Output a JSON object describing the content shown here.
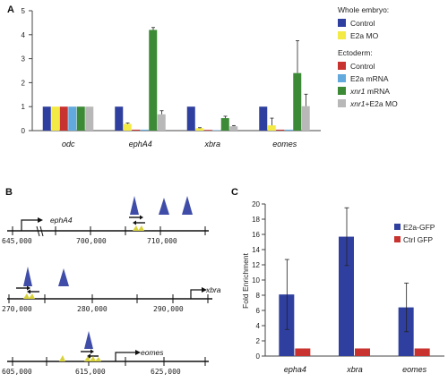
{
  "panels": {
    "a": "A",
    "b": "B",
    "c": "C"
  },
  "chart_data": [
    {
      "type": "bar",
      "categories": [
        "odc",
        "ephA4",
        "xbra",
        "eomes"
      ],
      "ylim": [
        0,
        5
      ],
      "yticks": [
        0,
        1,
        2,
        3,
        4,
        5
      ],
      "legend": {
        "groups": [
          {
            "title": "Whole embryo:",
            "items": [
              {
                "label": "Control",
                "color": "#2f3f9f"
              },
              {
                "label": "E2a MO",
                "color": "#f3ea45"
              }
            ]
          },
          {
            "title": "Ectoderm:",
            "items": [
              {
                "label": "Control",
                "color": "#c8322f"
              },
              {
                "label": "E2a mRNA",
                "color": "#62a9dd"
              },
              {
                "label": "xnr1 mRNA",
                "color": "#3c8a36",
                "italic_prefix": "xnr1"
              },
              {
                "label": "xnr1+E2a MO",
                "color": "#b8b8b8",
                "italic_prefix": "xnr1"
              }
            ]
          }
        ]
      },
      "series": [
        {
          "name": "Whole embryo: Control",
          "color": "#2f3f9f",
          "values": [
            1.0,
            1.0,
            1.0,
            1.0
          ],
          "errors": [
            0,
            0,
            0,
            0
          ]
        },
        {
          "name": "Whole embryo: E2a MO",
          "color": "#f3ea45",
          "values": [
            1.0,
            0.28,
            0.1,
            0.22
          ],
          "errors": [
            0,
            0.04,
            0.02,
            0.3
          ]
        },
        {
          "name": "Ectoderm: Control",
          "color": "#c8322f",
          "values": [
            1.0,
            0.04,
            0.03,
            0.04
          ],
          "errors": [
            0,
            0,
            0,
            0
          ]
        },
        {
          "name": "Ectoderm: E2a mRNA",
          "color": "#62a9dd",
          "values": [
            1.0,
            0.04,
            0.02,
            0.04
          ],
          "errors": [
            0,
            0,
            0,
            0
          ]
        },
        {
          "name": "Ectoderm: xnr1 mRNA",
          "color": "#3c8a36",
          "values": [
            1.0,
            4.2,
            0.52,
            2.4
          ],
          "errors": [
            0,
            0.1,
            0.08,
            1.35
          ]
        },
        {
          "name": "Ectoderm: xnr1+E2a MO",
          "color": "#b8b8b8",
          "values": [
            1.0,
            0.68,
            0.18,
            1.02
          ],
          "errors": [
            0,
            0.15,
            0.03,
            0.5
          ]
        }
      ]
    },
    {
      "type": "bar",
      "categories": [
        "epha4",
        "xbra",
        "eomes"
      ],
      "ylabel": "Fold Enrichment",
      "ylim": [
        0,
        20
      ],
      "yticks": [
        0,
        2,
        4,
        6,
        8,
        10,
        12,
        14,
        16,
        18,
        20
      ],
      "legend": {
        "placement": "top-right"
      },
      "series": [
        {
          "name": "E2a-GFP",
          "color": "#2f3f9f",
          "values": [
            8.1,
            15.7,
            6.4
          ],
          "errors": [
            4.6,
            3.8,
            3.2
          ]
        },
        {
          "name": "Ctrl GFP",
          "color": "#c8322f",
          "values": [
            1.0,
            1.0,
            1.0
          ],
          "errors": [
            0,
            0,
            0
          ]
        }
      ]
    }
  ],
  "diagram": {
    "tracks": [
      {
        "gene": "ephA4",
        "ticks": [
          "645,000",
          "700,000",
          "710,000"
        ]
      },
      {
        "gene": "xbra",
        "ticks": [
          "270,000",
          "280,000",
          "290,000"
        ]
      },
      {
        "gene": "eomes",
        "ticks": [
          "605,000",
          "615,000",
          "625,000"
        ]
      }
    ]
  }
}
